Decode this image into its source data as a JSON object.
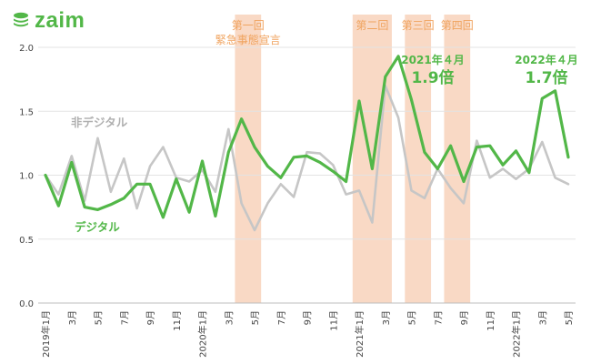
{
  "brand": {
    "name": "zaim",
    "icon": "coin-stack-icon",
    "color": "#52b748"
  },
  "chart_data": {
    "type": "line",
    "x_labels": [
      "2019年1月",
      "3月",
      "5月",
      "7月",
      "9月",
      "11月",
      "2020年1月",
      "3月",
      "5月",
      "7月",
      "9月",
      "11月",
      "2021年1月",
      "3月",
      "5月",
      "7月",
      "9月",
      "11月",
      "2022年1月",
      "3月",
      "5月"
    ],
    "x": [
      "2019-01",
      "2019-02",
      "2019-03",
      "2019-04",
      "2019-05",
      "2019-06",
      "2019-07",
      "2019-08",
      "2019-09",
      "2019-10",
      "2019-11",
      "2019-12",
      "2020-01",
      "2020-02",
      "2020-03",
      "2020-04",
      "2020-05",
      "2020-06",
      "2020-07",
      "2020-08",
      "2020-09",
      "2020-10",
      "2020-11",
      "2020-12",
      "2021-01",
      "2021-02",
      "2021-03",
      "2021-04",
      "2021-05",
      "2021-06",
      "2021-07",
      "2021-08",
      "2021-09",
      "2021-10",
      "2021-11",
      "2021-12",
      "2022-01",
      "2022-02",
      "2022-03",
      "2022-04",
      "2022-05"
    ],
    "yticks": [
      "0.0",
      "0.5",
      "1.0",
      "1.5",
      "2.0"
    ],
    "ylim": [
      0,
      2.0
    ],
    "grid": true,
    "series": [
      {
        "name": "デジタル",
        "color": "#52b748",
        "values": [
          1.0,
          0.76,
          1.1,
          0.75,
          0.73,
          0.77,
          0.82,
          0.93,
          0.93,
          0.67,
          0.97,
          0.71,
          1.11,
          0.68,
          1.18,
          1.44,
          1.22,
          1.07,
          0.98,
          1.14,
          1.15,
          1.1,
          1.03,
          0.95,
          1.58,
          1.05,
          1.77,
          1.93,
          1.59,
          1.18,
          1.05,
          1.23,
          0.95,
          1.22,
          1.23,
          1.08,
          1.19,
          1.02,
          1.6,
          1.66,
          1.14
        ]
      },
      {
        "name": "非デジタル",
        "color": "#c6c6c6",
        "values": [
          1.0,
          0.85,
          1.15,
          0.8,
          1.29,
          0.87,
          1.13,
          0.74,
          1.07,
          1.22,
          0.98,
          0.95,
          1.04,
          0.87,
          1.36,
          0.78,
          0.57,
          0.78,
          0.93,
          0.83,
          1.18,
          1.17,
          1.08,
          0.85,
          0.88,
          0.63,
          1.7,
          1.45,
          0.88,
          0.82,
          1.05,
          0.9,
          0.78,
          1.27,
          0.98,
          1.05,
          0.97,
          1.05,
          1.26,
          0.98,
          0.93
        ]
      }
    ],
    "highlight_periods": [
      {
        "label": "第一回\n緊急事態宣言",
        "start": "2020-04",
        "end": "2020-05"
      },
      {
        "label": "第二回",
        "start": "2021-01",
        "end": "2021-03"
      },
      {
        "label": "第三回",
        "start": "2021-05",
        "end": "2021-06"
      },
      {
        "label": "第四回",
        "start": "2021-08",
        "end": "2021-09"
      }
    ],
    "highlight_color": "#f9d9c5",
    "highlight_label_color": "#f0a35e",
    "annotations": [
      {
        "date_text": "2021年４月",
        "value_text": "1.9倍",
        "at": "2021-04"
      },
      {
        "date_text": "2022年４月",
        "value_text": "1.7倍",
        "at": "2022-04"
      }
    ]
  }
}
